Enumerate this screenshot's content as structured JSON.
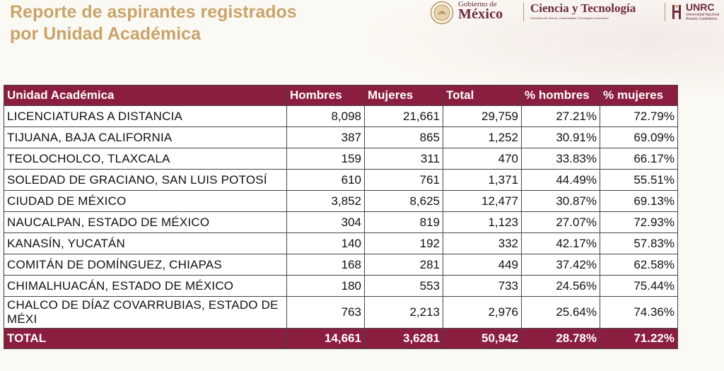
{
  "title": {
    "line1": "Reporte de aspirantes registrados",
    "line2": "por Unidad Académica"
  },
  "logos": {
    "gobierno_small": "Gobierno de",
    "gobierno_big": "México",
    "ciencia": "Ciencia y Tecnología",
    "ciencia_sub": "Secretaría de Ciencia, Humanidades, Tecnología e Innovación",
    "unrc": "UNRC",
    "unrc_sub": "Universidad Nacional Rosario Castellanos"
  },
  "colors": {
    "header_bg": "#8b1e3f",
    "title": "#c9a46a",
    "brand": "#6b2a3d"
  },
  "table": {
    "headers": [
      "Unidad Académica",
      "Hombres",
      "Mujeres",
      "Total",
      "% hombres",
      "% mujeres"
    ],
    "rows": [
      [
        "LICENCIATURAS A DISTANCIA",
        "8,098",
        "21,661",
        "29,759",
        "27.21%",
        "72.79%"
      ],
      [
        "TIJUANA, BAJA CALIFORNIA",
        "387",
        "865",
        "1,252",
        "30.91%",
        "69.09%"
      ],
      [
        "TEOLOCHOLCO, TLAXCALA",
        "159",
        "311",
        "470",
        "33.83%",
        "66.17%"
      ],
      [
        "SOLEDAD DE GRACIANO, SAN LUIS POTOSÍ",
        "610",
        "761",
        "1,371",
        "44.49%",
        "55.51%"
      ],
      [
        "CIUDAD DE MÉXICO",
        "3,852",
        "8,625",
        "12,477",
        "30.87%",
        "69.13%"
      ],
      [
        "NAUCALPAN, ESTADO DE MÉXICO",
        "304",
        "819",
        "1,123",
        "27.07%",
        "72.93%"
      ],
      [
        "KANASÍN, YUCATÁN",
        "140",
        "192",
        "332",
        "42.17%",
        "57.83%"
      ],
      [
        "COMITÁN DE DOMÍNGUEZ, CHIAPAS",
        "168",
        "281",
        "449",
        "37.42%",
        "62.58%"
      ],
      [
        "CHIMALHUACÁN, ESTADO DE MÉXICO",
        "180",
        "553",
        "733",
        "24.56%",
        "75.44%"
      ],
      [
        "CHALCO DE DÍAZ COVARRUBIAS, ESTADO DE MÉXI",
        "763",
        "2,213",
        "2,976",
        "25.64%",
        "74.36%"
      ]
    ],
    "total": [
      "TOTAL",
      "14,661",
      "3,6281",
      "50,942",
      "28.78%",
      "71.22%"
    ]
  }
}
